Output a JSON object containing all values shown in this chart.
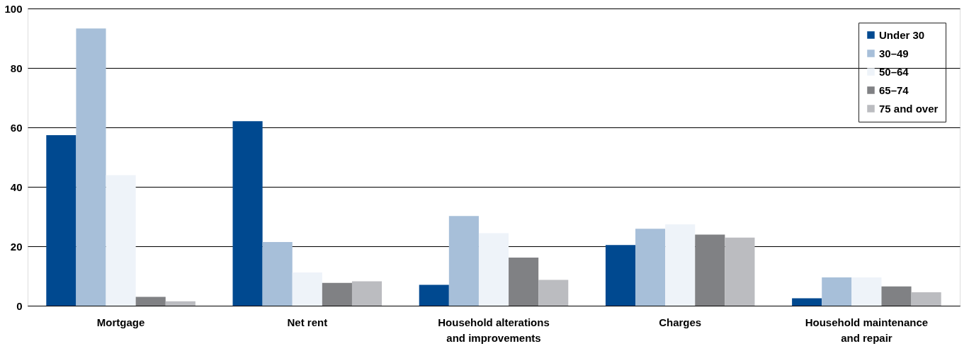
{
  "chart_data": {
    "type": "bar",
    "categories": [
      "Mortgage",
      "Net rent",
      "Household alterations and improvements",
      "Charges",
      "Household maintenance and repair"
    ],
    "series": [
      {
        "name": "Under 30",
        "color": "#004990",
        "values": [
          57.4,
          62.1,
          7.0,
          20.4,
          2.5
        ]
      },
      {
        "name": "30–49",
        "color": "#a7bfd9",
        "values": [
          93.3,
          21.4,
          30.2,
          25.9,
          9.5
        ]
      },
      {
        "name": "50–64",
        "color": "#eef3f9",
        "values": [
          43.9,
          11.2,
          24.4,
          27.4,
          9.5
        ]
      },
      {
        "name": "65–74",
        "color": "#808184",
        "values": [
          3.0,
          7.7,
          16.2,
          23.9,
          6.5
        ]
      },
      {
        "name": "75 and over",
        "color": "#bbbcc0",
        "values": [
          1.5,
          8.2,
          8.7,
          22.9,
          4.5
        ]
      }
    ],
    "ylim": [
      0,
      100
    ],
    "yticks": [
      0,
      20,
      40,
      60,
      80,
      100
    ],
    "grid": "y",
    "legend": "top right"
  }
}
